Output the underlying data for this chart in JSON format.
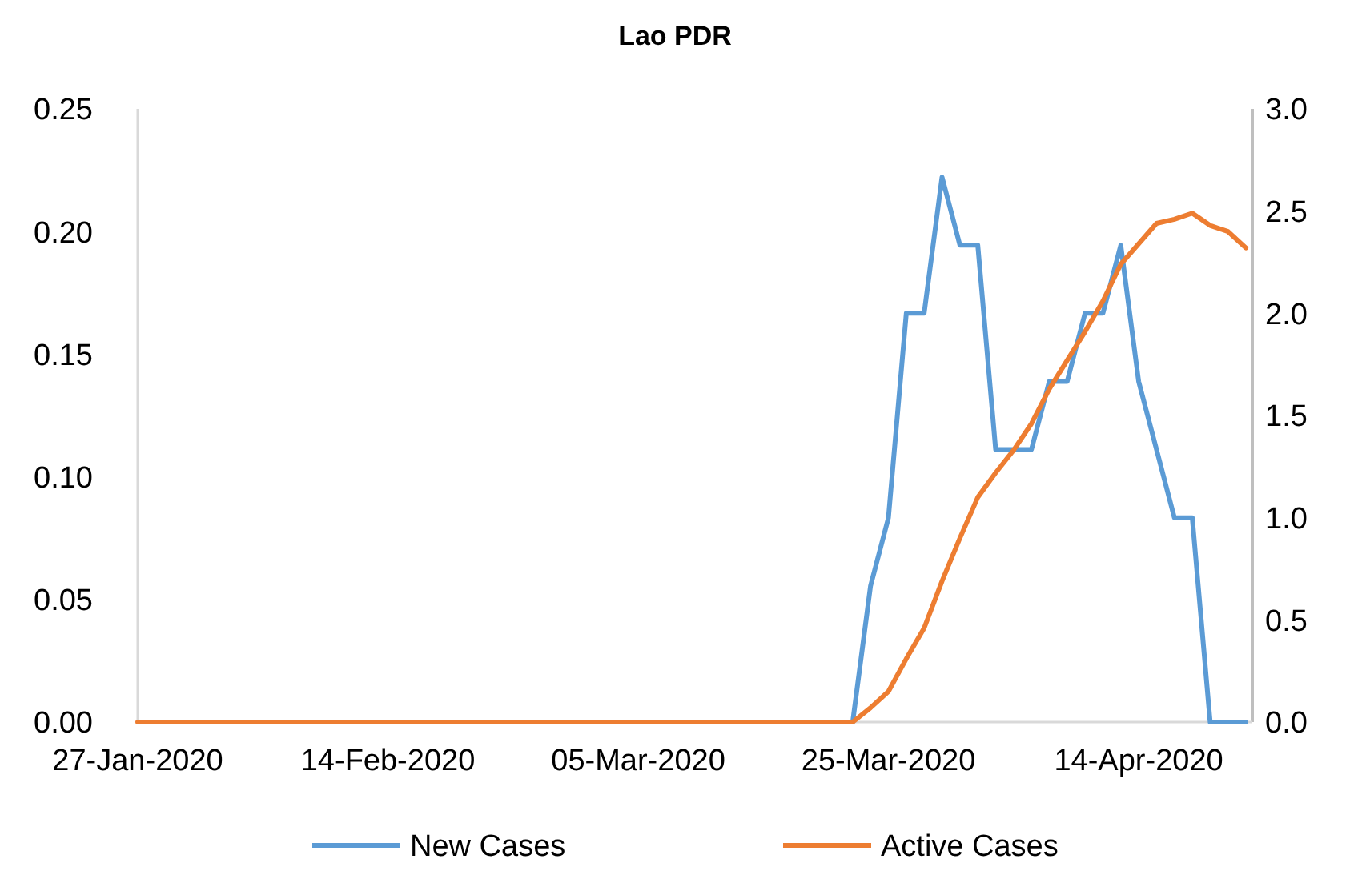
{
  "chart_data": {
    "type": "line",
    "title": "Lao PDR",
    "categories": [
      "27-Jan-2020",
      null,
      null,
      null,
      null,
      null,
      null,
      null,
      null,
      null,
      null,
      null,
      null,
      null,
      "14-Feb-2020",
      null,
      null,
      null,
      null,
      null,
      null,
      null,
      null,
      null,
      null,
      null,
      null,
      null,
      "05-Mar-2020",
      null,
      null,
      null,
      null,
      null,
      null,
      null,
      null,
      null,
      null,
      null,
      null,
      null,
      "25-Mar-2020",
      null,
      null,
      null,
      null,
      null,
      null,
      null,
      null,
      null,
      null,
      null,
      null,
      null,
      "14-Apr-2020",
      null,
      null,
      null,
      null,
      null,
      null
    ],
    "series": [
      {
        "name": "New Cases",
        "color": "#5b9bd5",
        "values": [
          null,
          null,
          null,
          null,
          null,
          null,
          null,
          null,
          null,
          null,
          null,
          null,
          null,
          null,
          null,
          null,
          null,
          null,
          null,
          null,
          null,
          null,
          null,
          null,
          null,
          null,
          null,
          null,
          null,
          null,
          null,
          null,
          null,
          null,
          null,
          null,
          null,
          null,
          null,
          null,
          0,
          0.0556,
          0.0833,
          0.1667,
          0.1667,
          0.2222,
          0.1944,
          0.1944,
          0.1111,
          0.1111,
          0.1111,
          0.1389,
          0.1389,
          0.1667,
          0.1667,
          0.1944,
          0.1389,
          0.1111,
          0.0833,
          0.0833,
          0,
          0,
          0
        ]
      },
      {
        "name": "Active Cases",
        "color": "#ed7d31",
        "axis": "y2",
        "values": [
          0,
          0,
          0,
          0,
          0,
          0,
          0,
          0,
          0,
          0,
          0,
          0,
          0,
          0,
          0,
          0,
          0,
          0,
          0,
          0,
          0,
          0,
          0,
          0,
          0,
          0,
          0,
          0,
          0,
          0,
          0,
          0,
          0,
          0,
          0,
          0,
          0,
          0,
          0,
          0,
          0,
          0.07,
          0.15,
          0.31,
          0.46,
          0.69,
          0.9,
          1.1,
          1.22,
          1.33,
          1.46,
          1.63,
          1.77,
          1.91,
          2.06,
          2.24,
          2.34,
          2.44,
          2.46,
          2.49,
          2.43,
          2.4,
          2.32
        ]
      }
    ],
    "ylim": [
      0,
      0.25
    ],
    "yticks": [
      {
        "value": 0,
        "label": "0.00"
      },
      {
        "value": 0.05,
        "label": "0.05"
      },
      {
        "value": 0.1,
        "label": "0.10"
      },
      {
        "value": 0.15,
        "label": "0.15"
      },
      {
        "value": 0.2,
        "label": "0.20"
      },
      {
        "value": 0.25,
        "label": "0.25"
      }
    ],
    "y2lim": [
      0,
      3
    ],
    "y2ticks": [
      {
        "value": 0,
        "label": "0.0"
      },
      {
        "value": 0.5,
        "label": "0.5"
      },
      {
        "value": 1,
        "label": "1.0"
      },
      {
        "value": 1.5,
        "label": "1.5"
      },
      {
        "value": 2,
        "label": "2.0"
      },
      {
        "value": 2.5,
        "label": "2.5"
      },
      {
        "value": 3,
        "label": "3.0"
      }
    ],
    "grid": false,
    "legend": "bottom"
  }
}
